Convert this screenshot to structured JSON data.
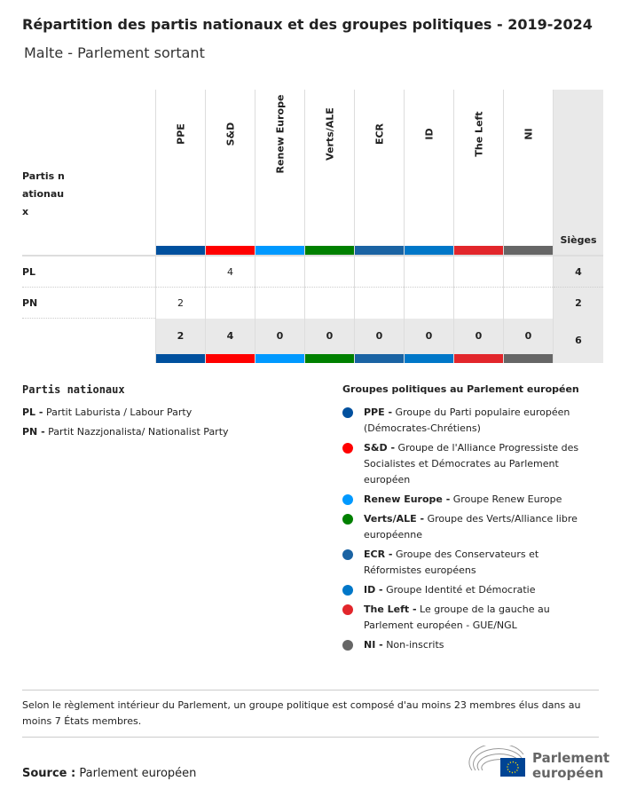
{
  "title": "Répartition des partis nationaux et des groupes politiques - 2019-2024",
  "subtitle": "Malte - Parlement sortant",
  "table": {
    "row_header": "Partis nationaux",
    "seats_header": "Sièges",
    "groups": [
      {
        "name": "PPE",
        "color": "#00509e"
      },
      {
        "name": "S&D",
        "color": "#ff0000"
      },
      {
        "name": "Renew Europe",
        "color": "#0099ff"
      },
      {
        "name": "Verts/ALE",
        "color": "#008000"
      },
      {
        "name": "ECR",
        "color": "#1a63a3"
      },
      {
        "name": "ID",
        "color": "#0077c8"
      },
      {
        "name": "The Left",
        "color": "#e2262b"
      },
      {
        "name": "NI",
        "color": "#666666"
      }
    ],
    "rows": [
      {
        "party": "PL",
        "values": [
          "",
          "4",
          "",
          "",
          "",
          "",
          "",
          ""
        ],
        "seats": "4"
      },
      {
        "party": "PN",
        "values": [
          "2",
          "",
          "",
          "",
          "",
          "",
          "",
          ""
        ],
        "seats": "2"
      }
    ],
    "totals": [
      "2",
      "4",
      "0",
      "0",
      "0",
      "0",
      "0",
      "0"
    ],
    "total_seats": "6"
  },
  "national_legend": {
    "title": "Partis nationaux",
    "items": [
      {
        "abbr": "PL -",
        "name": "Partit Laburista / Labour Party"
      },
      {
        "abbr": "PN -",
        "name": "Partit Nazzjonalista/ Nationalist Party"
      }
    ]
  },
  "group_legend": {
    "title": "Groupes politiques au Parlement européen",
    "items": [
      {
        "abbr": "PPE -",
        "name": "Groupe du Parti populaire européen (Démocrates-Chrétiens)",
        "color": "#00509e"
      },
      {
        "abbr": "S&D -",
        "name": "Groupe de l'Alliance Progressiste des Socialistes et Démocrates au Parlement européen",
        "color": "#ff0000"
      },
      {
        "abbr": "Renew Europe -",
        "name": "Groupe Renew Europe",
        "color": "#0099ff"
      },
      {
        "abbr": "Verts/ALE -",
        "name": "Groupe des Verts/Alliance libre européenne",
        "color": "#008000"
      },
      {
        "abbr": "ECR -",
        "name": "Groupe des Conservateurs et Réformistes européens",
        "color": "#1a63a3"
      },
      {
        "abbr": "ID -",
        "name": "Groupe Identité et Démocratie",
        "color": "#0077c8"
      },
      {
        "abbr": "The Left -",
        "name": "Le groupe de la gauche au Parlement européen - GUE/NGL",
        "color": "#e2262b"
      },
      {
        "abbr": "NI -",
        "name": "Non-inscrits",
        "color": "#666666"
      }
    ]
  },
  "note": "Selon le règlement intérieur du Parlement, un groupe politique est composé d'au moins 23 membres élus dans au moins 7 États membres.",
  "source": {
    "label": "Source :",
    "value": "Parlement européen"
  },
  "logo": {
    "line1": "Parlement",
    "line2": "européen"
  }
}
